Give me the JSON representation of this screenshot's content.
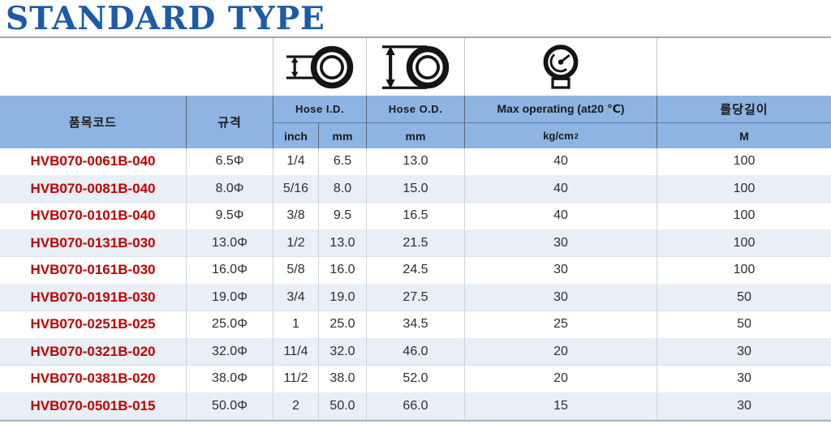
{
  "title": "STANDARD TYPE",
  "colors": {
    "title_blue": "#1d5ba6",
    "header_band_blue": "#8db4e2",
    "alt_row_blue": "#e9eff6",
    "item_code_red": "#c00000",
    "bottom_border_blue": "#9fb6d4"
  },
  "table": {
    "headers": {
      "item_code": "품목코드",
      "spec": "규격",
      "hose_id": "Hose I.D.",
      "hose_od": "Hose O.D.",
      "max_operating": "Max operating (at20 ℃)",
      "roll_length": "롤당길이",
      "sub": {
        "inch": "inch",
        "id_mm": "mm",
        "od_mm": "mm",
        "pressure_unit": "kg/cm",
        "pressure_sup": "2",
        "roll_unit": "M"
      },
      "icons": {
        "hose_id": "hose-id-icon",
        "hose_od": "hose-od-icon",
        "max_operating": "pressure-gauge-icon"
      }
    },
    "rows": [
      {
        "code": "HVB070-0061B-040",
        "spec": "6.5Φ",
        "inch": "1/4",
        "mm": "6.5",
        "od": "13.0",
        "max": "40",
        "roll": "100"
      },
      {
        "code": "HVB070-0081B-040",
        "spec": "8.0Φ",
        "inch": "5/16",
        "mm": "8.0",
        "od": "15.0",
        "max": "40",
        "roll": "100"
      },
      {
        "code": "HVB070-0101B-040",
        "spec": "9.5Φ",
        "inch": "3/8",
        "mm": "9.5",
        "od": "16.5",
        "max": "40",
        "roll": "100"
      },
      {
        "code": "HVB070-0131B-030",
        "spec": "13.0Φ",
        "inch": "1/2",
        "mm": "13.0",
        "od": "21.5",
        "max": "30",
        "roll": "100"
      },
      {
        "code": "HVB070-0161B-030",
        "spec": "16.0Φ",
        "inch": "5/8",
        "mm": "16.0",
        "od": "24.5",
        "max": "30",
        "roll": "100"
      },
      {
        "code": "HVB070-0191B-030",
        "spec": "19.0Φ",
        "inch": "3/4",
        "mm": "19.0",
        "od": "27.5",
        "max": "30",
        "roll": "50"
      },
      {
        "code": "HVB070-0251B-025",
        "spec": "25.0Φ",
        "inch": "1",
        "mm": "25.0",
        "od": "34.5",
        "max": "25",
        "roll": "50"
      },
      {
        "code": "HVB070-0321B-020",
        "spec": "32.0Φ",
        "inch": "11/4",
        "mm": "32.0",
        "od": "46.0",
        "max": "20",
        "roll": "30"
      },
      {
        "code": "HVB070-0381B-020",
        "spec": "38.0Φ",
        "inch": "11/2",
        "mm": "38.0",
        "od": "52.0",
        "max": "20",
        "roll": "30"
      },
      {
        "code": "HVB070-0501B-015",
        "spec": "50.0Φ",
        "inch": "2",
        "mm": "50.0",
        "od": "66.0",
        "max": "15",
        "roll": "30"
      }
    ]
  }
}
